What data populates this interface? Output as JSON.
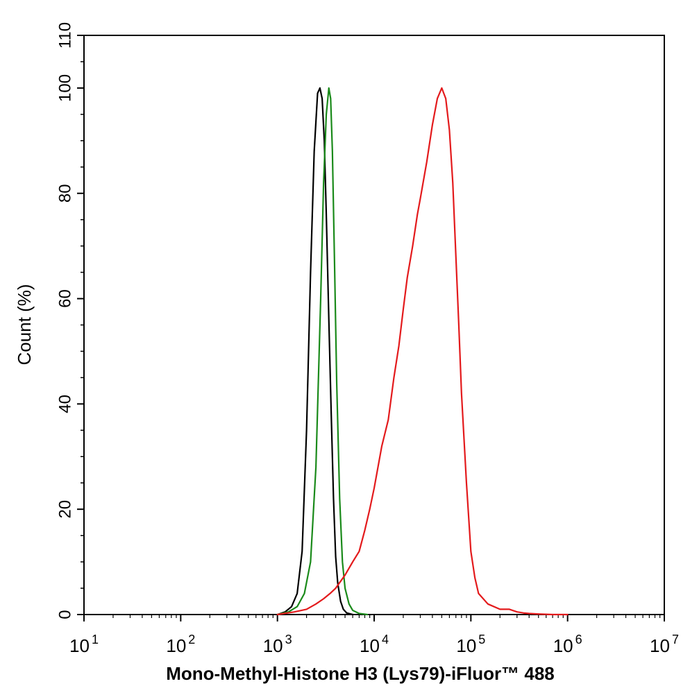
{
  "chart_data": {
    "type": "line",
    "title": "",
    "xlabel": "Mono-Methyl-Histone H3 (Lys79)-iFluor™ 488",
    "ylabel": "Count  (%)",
    "x_scale": "log",
    "xlim": [
      10,
      10000000
    ],
    "ylim": [
      0,
      110
    ],
    "grid": false,
    "legend": "none",
    "y_ticks": [
      0,
      20,
      40,
      60,
      80,
      100,
      110
    ],
    "y_tick_labels": [
      "0",
      "20",
      "40",
      "60",
      "80",
      "100",
      "110"
    ],
    "x_ticks": [
      {
        "value": 10,
        "base": "10",
        "exp": "1"
      },
      {
        "value": 100,
        "base": "10",
        "exp": "2"
      },
      {
        "value": 1000,
        "base": "10",
        "exp": "3"
      },
      {
        "value": 10000,
        "base": "10",
        "exp": "4"
      },
      {
        "value": 100000,
        "base": "10",
        "exp": "5"
      },
      {
        "value": 1000000,
        "base": "10",
        "exp": "6"
      },
      {
        "value": 10000000,
        "base": "10",
        "exp": "7"
      }
    ],
    "series": [
      {
        "color": "#000000",
        "x": [
          1000,
          1200,
          1400,
          1600,
          1800,
          2000,
          2200,
          2400,
          2600,
          2750,
          2900,
          3050,
          3200,
          3400,
          3600,
          3800,
          4000,
          4200,
          4500,
          4800,
          5200,
          6000
        ],
        "y": [
          0,
          0.5,
          1.5,
          4,
          12,
          35,
          65,
          88,
          99,
          100,
          98,
          90,
          76,
          56,
          38,
          22,
          11,
          6,
          2.5,
          1,
          0.3,
          0
        ]
      },
      {
        "color": "#1a8a1a",
        "x": [
          1000,
          1300,
          1600,
          1900,
          2200,
          2500,
          2800,
          3000,
          3200,
          3400,
          3550,
          3700,
          3900,
          4100,
          4400,
          4700,
          5000,
          5500,
          6000,
          7000,
          8500
        ],
        "y": [
          0,
          0.5,
          1.5,
          4,
          10,
          28,
          60,
          82,
          95,
          100,
          98,
          88,
          66,
          44,
          22,
          10,
          5,
          2,
          0.8,
          0.2,
          0
        ]
      },
      {
        "color": "#e31a1c",
        "x": [
          1000,
          1500,
          2000,
          2500,
          3000,
          3500,
          4000,
          5000,
          6000,
          7000,
          8000,
          9000,
          10000,
          12000,
          14000,
          16000,
          18000,
          20000,
          22000,
          25000,
          28000,
          30000,
          35000,
          40000,
          45000,
          50000,
          55000,
          60000,
          65000,
          70000,
          75000,
          80000,
          90000,
          100000,
          110000,
          120000,
          150000,
          200000,
          250000,
          300000,
          350000,
          400000,
          500000,
          700000,
          1000000
        ],
        "y": [
          0,
          0.5,
          1,
          2,
          3,
          4,
          5,
          7.5,
          10,
          12,
          16,
          20,
          24,
          32,
          37,
          45,
          51,
          58,
          64,
          70,
          76,
          79,
          86,
          93,
          98,
          100,
          98,
          92,
          82,
          68,
          55,
          42,
          25,
          12,
          7,
          4,
          2,
          1,
          1,
          0.5,
          0.3,
          0.2,
          0.1,
          0,
          0
        ]
      }
    ]
  }
}
